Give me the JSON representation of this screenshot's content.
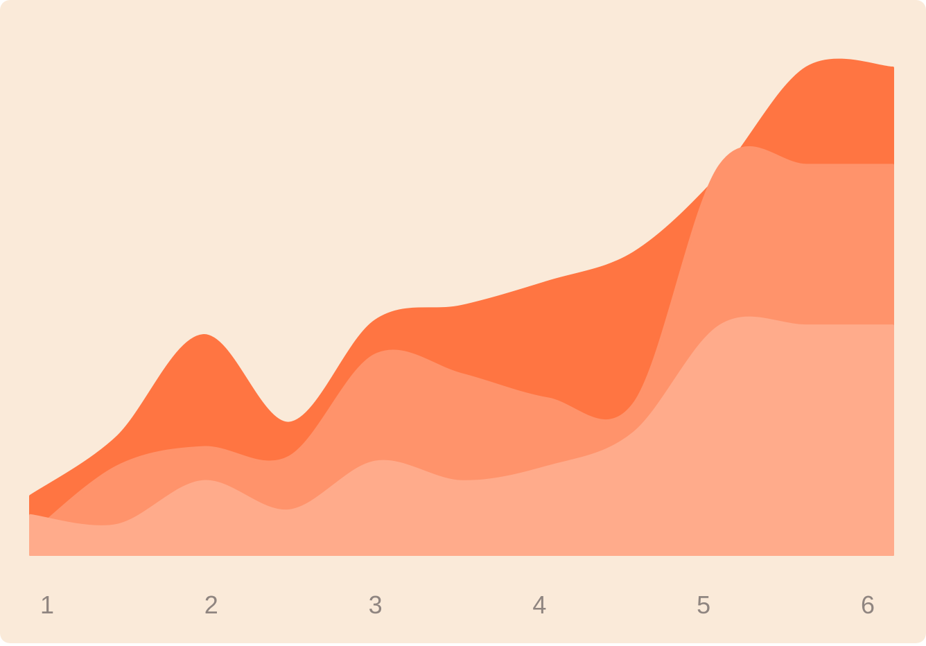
{
  "colors": {
    "background": "#faead9",
    "series": [
      "#ff7542",
      "#ff936b",
      "#ffab8b"
    ]
  },
  "chart_data": {
    "type": "area",
    "title": "",
    "xlabel": "",
    "ylabel": "",
    "x": [
      1,
      1.5,
      2,
      2.5,
      3,
      3.5,
      4,
      4.5,
      5,
      5.5,
      6
    ],
    "x_tick_labels": [
      "1",
      "2",
      "3",
      "4",
      "5",
      "6"
    ],
    "ylim": [
      0,
      100
    ],
    "grid": false,
    "series": [
      {
        "color": "#ff7542",
        "values": [
          12,
          24,
          45,
          27,
          48,
          51,
          56,
          62,
          78,
          100,
          100
        ]
      },
      {
        "color": "#ff936b",
        "values": [
          4,
          18,
          22,
          20,
          41,
          37,
          32,
          31,
          80,
          80,
          80
        ]
      },
      {
        "color": "#ffab8b",
        "values": [
          8,
          6,
          15,
          9,
          19,
          15,
          18,
          25,
          47,
          47,
          47
        ]
      }
    ]
  }
}
